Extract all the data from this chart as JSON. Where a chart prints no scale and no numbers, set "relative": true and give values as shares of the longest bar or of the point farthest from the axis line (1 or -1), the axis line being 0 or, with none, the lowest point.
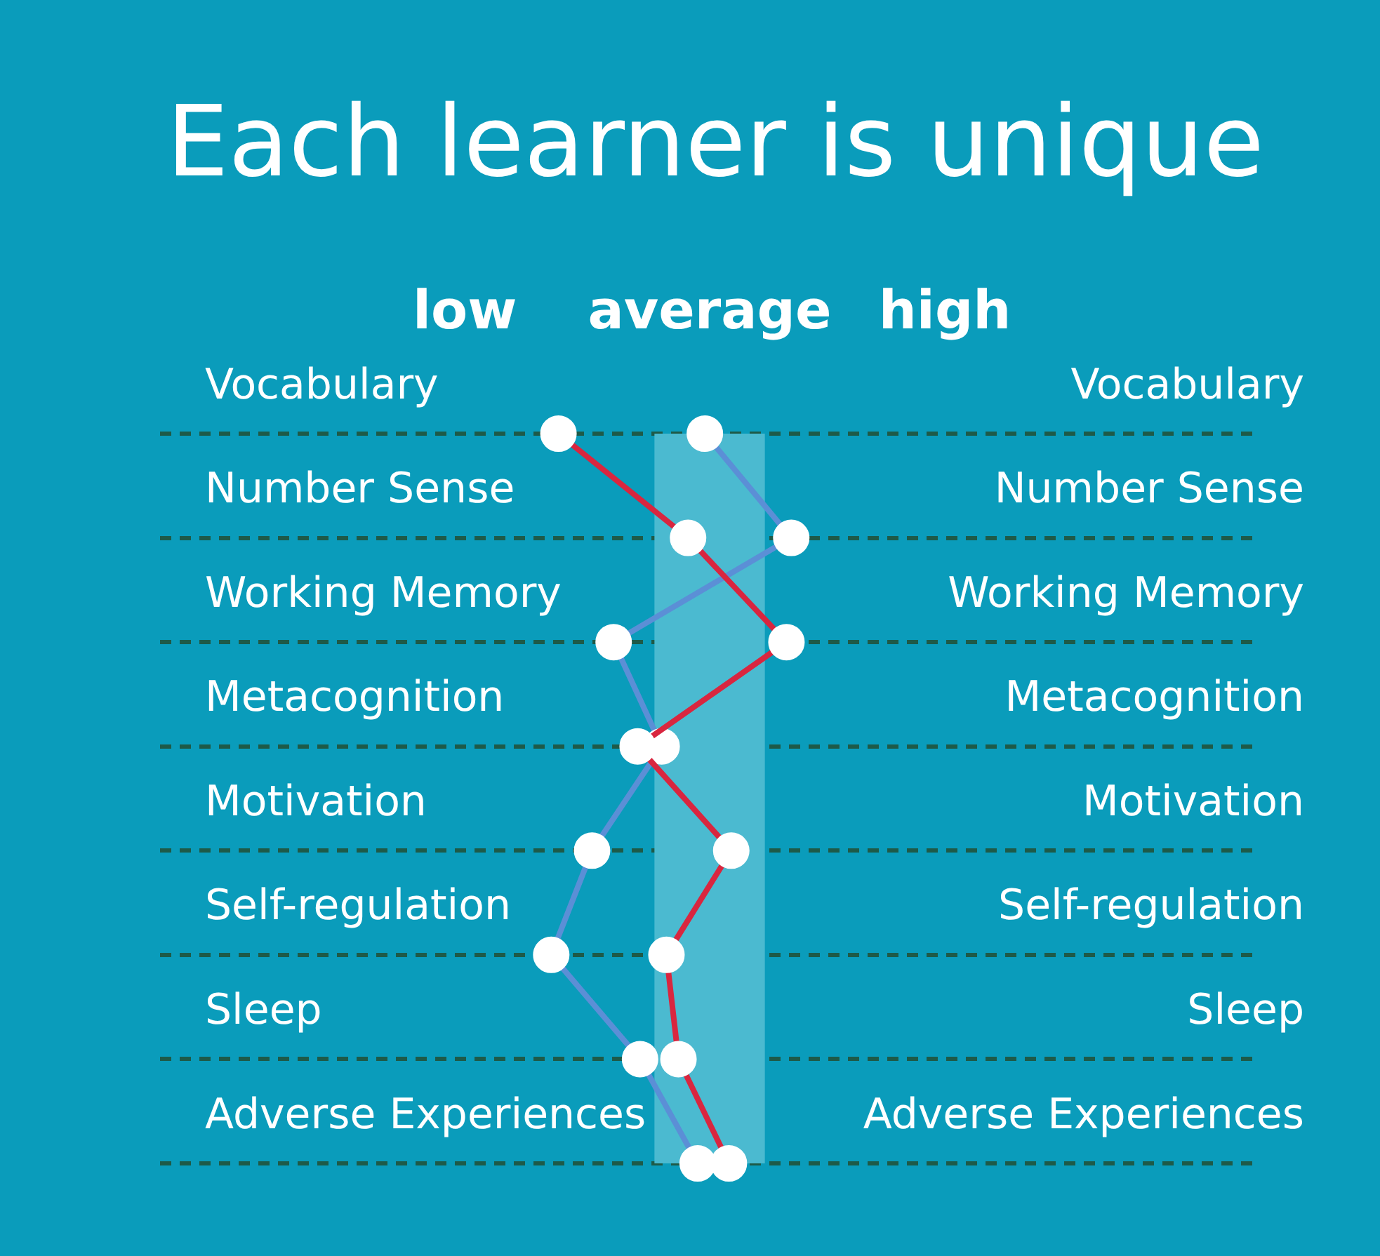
{
  "chart_data": {
    "type": "line",
    "orientation": "horizontal",
    "relative": true,
    "title": "Each learner is unique",
    "categories": [
      "Vocabulary",
      "Number Sense",
      "Working Memory",
      "Metacognition",
      "Motivation",
      "Self-regulation",
      "Sleep",
      "Adverse Experiences"
    ],
    "series": [
      {
        "color": "#d9263f",
        "values": [
          0.03,
          0.57,
          0.98,
          0.36,
          0.75,
          0.48,
          0.53,
          0.74
        ]
      },
      {
        "color": "#5b8fd6",
        "values": [
          0.64,
          1,
          0.26,
          0.46,
          0.17,
          0,
          0.37,
          0.61
        ]
      }
    ],
    "bands": [
      {
        "axis": "x",
        "from": 0.43,
        "to": 0.89,
        "color": "#4bbad0",
        "label": "average"
      }
    ],
    "annotations": [
      "low",
      "high"
    ],
    "grid": "y",
    "marker": "circle"
  }
}
